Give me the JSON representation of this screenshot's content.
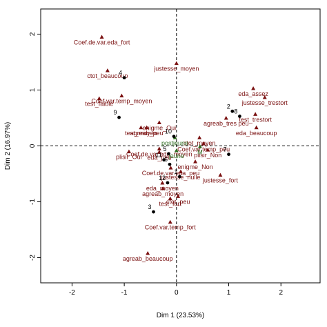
{
  "chart_data": {
    "type": "scatter",
    "title": "",
    "xlabel": "Dim 1 (23.53%)",
    "ylabel": "Dim 2 (16.97%)",
    "xlim": [
      -2.6,
      2.75
    ],
    "ylim": [
      -2.45,
      2.45
    ],
    "x_ticks": [
      -2,
      -1,
      0,
      1,
      2
    ],
    "y_ticks": [
      -2,
      -1,
      0,
      1,
      2
    ],
    "grid": false,
    "reference_lines": {
      "x": 0,
      "y": 0
    },
    "colors": {
      "categories": "#7a1010",
      "supplementary": "#2d6b1f",
      "individuals": "#000000"
    },
    "series": [
      {
        "marker": "triangle",
        "points": [
          {
            "label": "Coef.de.var.eda_fort",
            "x": -1.43,
            "y": 1.95
          },
          {
            "label": "justesse_moyen",
            "x": 0.0,
            "y": 1.48
          },
          {
            "label": "ctot_beaucoup",
            "x": -1.32,
            "y": 1.35
          },
          {
            "label": "test_faible",
            "x": -1.48,
            "y": 0.85
          },
          {
            "label": "Coef.var.temp_moyen",
            "x": -1.05,
            "y": 0.9
          },
          {
            "label": "eda_assez",
            "x": 1.47,
            "y": 1.03
          },
          {
            "label": "justesse_trestort",
            "x": 1.69,
            "y": 0.87
          },
          {
            "label": "test_trestort",
            "x": 1.51,
            "y": 0.57
          },
          {
            "label": "eda_beaucoup",
            "x": 1.53,
            "y": 0.33
          },
          {
            "label": "enigme_Oui",
            "x": -0.33,
            "y": 0.42
          },
          {
            "label": "agreab_tres peu",
            "x": 0.95,
            "y": 0.5
          },
          {
            "label": "agreab_peu",
            "x": -0.57,
            "y": 0.33
          },
          {
            "label": "test_moyen",
            "x": -0.68,
            "y": 0.33
          },
          {
            "label": "ctot_moyen",
            "x": 0.44,
            "y": 0.15
          },
          {
            "label": "Coef.var.temp_peu",
            "x": 0.52,
            "y": 0.04
          },
          {
            "label": "plisir_Non",
            "x": 0.6,
            "y": -0.07
          },
          {
            "label": "Coef.de.var.eda_moyen",
            "x": -0.33,
            "y": -0.05
          },
          {
            "label": "eda_peu",
            "x": -0.33,
            "y": -0.11
          },
          {
            "label": "plisir_Oui",
            "x": -0.91,
            "y": -0.1
          },
          {
            "label": "enigme_Non",
            "x": 0.36,
            "y": -0.28
          },
          {
            "label": "Coef.de.var.eda_peu",
            "x": -0.11,
            "y": -0.39
          },
          {
            "label": "justesse_nulle",
            "x": 0.08,
            "y": -0.46
          },
          {
            "label": "justesse_fort",
            "x": 0.84,
            "y": -0.52
          },
          {
            "label": "eda_moyen",
            "x": -0.27,
            "y": -0.66
          },
          {
            "label": "agreab_moyen",
            "x": -0.26,
            "y": -0.76
          },
          {
            "label": "ctot_peu",
            "x": 0.03,
            "y": -0.9
          },
          {
            "label": "test_fort",
            "x": -0.12,
            "y": -0.94
          },
          {
            "label": "Coef.var.temp_fort",
            "x": -0.12,
            "y": -1.36
          },
          {
            "label": "agreab_beaucoup",
            "x": -0.55,
            "y": -1.92
          }
        ]
      },
      {
        "marker": "triangle",
        "color_key": "supplementary",
        "points": [
          {
            "label": "postjeune",
            "x": -0.03,
            "y": 0.15
          },
          {
            "label": "jeune",
            "x": 0.0,
            "y": -0.08
          },
          {
            "label": "M",
            "x": 0.45,
            "y": -0.01
          }
        ]
      },
      {
        "marker": "circle",
        "color_key": "individuals",
        "points": [
          {
            "label": "4",
            "x": -1.0,
            "y": 1.22
          },
          {
            "label": "9",
            "x": -1.1,
            "y": 0.51
          },
          {
            "label": "2",
            "x": 1.07,
            "y": 0.62
          },
          {
            "label": "8",
            "x": 1.21,
            "y": 0.53
          },
          {
            "label": "10",
            "x": -0.05,
            "y": 0.17
          },
          {
            "label": "7",
            "x": 1.0,
            "y": -0.15
          },
          {
            "label": "5",
            "x": -0.15,
            "y": -0.14
          },
          {
            "label": "11",
            "x": -0.24,
            "y": -0.25
          },
          {
            "label": "6",
            "x": -0.13,
            "y": -0.33
          },
          {
            "label": "1",
            "x": 0.06,
            "y": -0.55
          },
          {
            "label": "12",
            "x": -0.17,
            "y": -0.66
          },
          {
            "label": "3",
            "x": -0.44,
            "y": -1.18
          }
        ]
      }
    ]
  }
}
